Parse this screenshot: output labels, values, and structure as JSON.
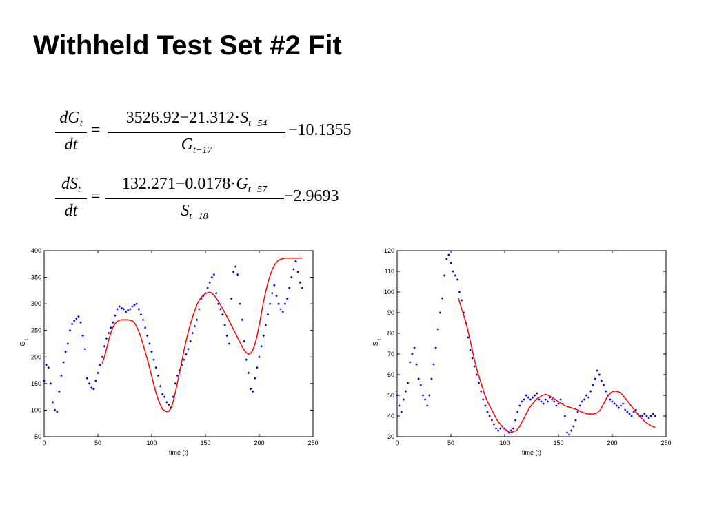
{
  "title": "Withheld Test Set #2 Fit",
  "equations": [
    {
      "lhs_num_base": "dG",
      "lhs_num_sub": "t",
      "lhs_den": "dt",
      "equals": "=",
      "rhs_num_text": "3526.92−21.312·",
      "rhs_num_var": "S",
      "rhs_num_sub": "t−54",
      "rhs_den_var": "G",
      "rhs_den_sub": "t−17",
      "tail": "−10.1355"
    },
    {
      "lhs_num_base": "dS",
      "lhs_num_sub": "t",
      "lhs_den": "dt",
      "equals": "=",
      "rhs_num_text": "132.271−0.0178·",
      "rhs_num_var": "G",
      "rhs_num_sub": "t−57",
      "rhs_den_var": "S",
      "rhs_den_sub": "t−18",
      "tail": "−2.9693"
    }
  ],
  "chart_data": [
    {
      "type": "scatter",
      "title": "",
      "xlabel": "time (t)",
      "ylabel": "G",
      "ylabel_sub": "t",
      "xlim": [
        0,
        250
      ],
      "ylim": [
        50,
        400
      ],
      "xticks": [
        0,
        50,
        100,
        150,
        200,
        250
      ],
      "yticks": [
        50,
        100,
        150,
        200,
        250,
        300,
        350,
        400
      ],
      "grid": false,
      "points_color": "#0000ff",
      "fit_color": "#ff0000",
      "observed_x": [
        0,
        2,
        4,
        6,
        8,
        10,
        12,
        14,
        16,
        18,
        20,
        22,
        24,
        26,
        28,
        30,
        32,
        34,
        36,
        38,
        40,
        42,
        44,
        46,
        48,
        50,
        52,
        54,
        56,
        58,
        60,
        62,
        64,
        66,
        68,
        70,
        72,
        74,
        76,
        78,
        80,
        82,
        84,
        86,
        88,
        90,
        92,
        94,
        96,
        98,
        100,
        102,
        104,
        106,
        108,
        110,
        112,
        114,
        116,
        118,
        120,
        122,
        124,
        126,
        128,
        130,
        132,
        134,
        136,
        138,
        140,
        142,
        144,
        146,
        148,
        150,
        152,
        154,
        156,
        158,
        160,
        162,
        164,
        166,
        168,
        170,
        172,
        174,
        176,
        178,
        180,
        182,
        184,
        186,
        188,
        190,
        192,
        194,
        196,
        198,
        200,
        202,
        204,
        206,
        208,
        210,
        212,
        214,
        216,
        218,
        220,
        222,
        224,
        226,
        228,
        230,
        232,
        234,
        236,
        238,
        240
      ],
      "observed_y": [
        155,
        185,
        180,
        150,
        115,
        100,
        97,
        135,
        165,
        190,
        210,
        225,
        250,
        262,
        268,
        272,
        276,
        265,
        240,
        215,
        160,
        150,
        142,
        140,
        155,
        170,
        185,
        200,
        220,
        235,
        245,
        255,
        265,
        278,
        290,
        295,
        292,
        290,
        285,
        288,
        290,
        295,
        298,
        300,
        290,
        280,
        270,
        255,
        240,
        225,
        210,
        195,
        180,
        165,
        145,
        130,
        125,
        115,
        110,
        105,
        125,
        150,
        165,
        175,
        185,
        195,
        205,
        215,
        230,
        245,
        258,
        270,
        290,
        310,
        315,
        320,
        330,
        340,
        350,
        355,
        320,
        300,
        290,
        280,
        260,
        240,
        225,
        310,
        360,
        370,
        355,
        300,
        270,
        230,
        195,
        170,
        140,
        135,
        160,
        180,
        200,
        220,
        240,
        260,
        280,
        300,
        320,
        335,
        315,
        300,
        290,
        285,
        300,
        310,
        330,
        350,
        365,
        380,
        360,
        340,
        330
      ],
      "fit_x": [
        54,
        56,
        58,
        60,
        62,
        64,
        66,
        68,
        70,
        72,
        74,
        76,
        78,
        80,
        82,
        84,
        86,
        88,
        90,
        92,
        94,
        96,
        98,
        100,
        102,
        104,
        106,
        108,
        110,
        112,
        114,
        116,
        118,
        120,
        122,
        124,
        126,
        128,
        130,
        132,
        134,
        136,
        138,
        140,
        142,
        144,
        146,
        148,
        150,
        152,
        154,
        156,
        158,
        160,
        162,
        164,
        166,
        168,
        170,
        172,
        174,
        176,
        178,
        180,
        182,
        184,
        186,
        188,
        190,
        192,
        194,
        196,
        198,
        200,
        202,
        204,
        206,
        208,
        210,
        212,
        214,
        216,
        218,
        220,
        222,
        224,
        226,
        228,
        230,
        232,
        234,
        236,
        238,
        240
      ],
      "fit_y": [
        188,
        200,
        215,
        232,
        245,
        256,
        263,
        267,
        269,
        270,
        270,
        270,
        270,
        269,
        268,
        264,
        257,
        248,
        237,
        224,
        210,
        195,
        180,
        164,
        148,
        133,
        120,
        110,
        102,
        99,
        97,
        98,
        104,
        116,
        133,
        152,
        172,
        192,
        212,
        230,
        247,
        262,
        275,
        287,
        298,
        306,
        312,
        316,
        319,
        321,
        322,
        320,
        316,
        311,
        305,
        298,
        291,
        283,
        276,
        268,
        260,
        252,
        244,
        236,
        228,
        220,
        213,
        208,
        205,
        207,
        213,
        224,
        240,
        260,
        282,
        304,
        323,
        339,
        353,
        364,
        372,
        378,
        382,
        384,
        385,
        386,
        386,
        386,
        386,
        386,
        386,
        386,
        386,
        386
      ]
    },
    {
      "type": "scatter",
      "title": "",
      "xlabel": "time (t)",
      "ylabel": "S",
      "ylabel_sub": "t",
      "xlim": [
        0,
        250
      ],
      "ylim": [
        30,
        120
      ],
      "xticks": [
        0,
        50,
        100,
        150,
        200,
        250
      ],
      "yticks": [
        30,
        40,
        50,
        60,
        70,
        80,
        90,
        100,
        110,
        120
      ],
      "grid": false,
      "points_color": "#0000ff",
      "fit_color": "#ff0000",
      "observed_x": [
        0,
        2,
        4,
        6,
        8,
        10,
        12,
        14,
        16,
        18,
        20,
        22,
        24,
        26,
        28,
        30,
        32,
        34,
        36,
        38,
        40,
        42,
        44,
        46,
        48,
        50,
        52,
        54,
        56,
        58,
        60,
        62,
        64,
        66,
        68,
        70,
        72,
        74,
        76,
        78,
        80,
        82,
        84,
        86,
        88,
        90,
        92,
        94,
        96,
        98,
        100,
        102,
        104,
        106,
        108,
        110,
        112,
        114,
        116,
        118,
        120,
        122,
        124,
        126,
        128,
        130,
        132,
        134,
        136,
        138,
        140,
        142,
        144,
        146,
        148,
        150,
        152,
        154,
        156,
        158,
        160,
        162,
        164,
        166,
        168,
        170,
        172,
        174,
        176,
        178,
        180,
        182,
        184,
        186,
        188,
        190,
        192,
        194,
        196,
        198,
        200,
        202,
        204,
        206,
        208,
        210,
        212,
        214,
        216,
        218,
        220,
        222,
        224,
        226,
        228,
        230,
        232,
        234,
        236,
        238,
        240
      ],
      "observed_y": [
        50,
        45,
        42,
        48,
        52,
        56,
        66,
        70,
        73,
        65,
        58,
        55,
        50,
        48,
        45,
        50,
        58,
        65,
        73,
        82,
        90,
        97,
        108,
        116,
        118,
        114,
        110,
        108,
        106,
        100,
        96,
        90,
        85,
        78,
        72,
        68,
        64,
        60,
        56,
        52,
        48,
        45,
        42,
        40,
        38,
        36,
        34,
        33,
        34,
        35,
        34,
        33,
        32,
        33,
        34,
        38,
        42,
        45,
        47,
        48,
        50,
        49,
        48,
        49,
        50,
        51,
        48,
        47,
        46,
        48,
        47,
        49,
        48,
        47,
        45,
        46,
        48,
        46,
        40,
        32,
        31,
        33,
        35,
        38,
        42,
        45,
        47,
        48,
        50,
        49,
        52,
        55,
        58,
        62,
        60,
        57,
        55,
        52,
        50,
        48,
        47,
        46,
        45,
        44,
        45,
        46,
        43,
        42,
        41,
        40,
        42,
        43,
        41,
        40,
        40,
        41,
        40,
        39,
        40,
        41,
        40
      ],
      "fit_x": [
        57,
        60,
        63,
        66,
        69,
        72,
        75,
        78,
        81,
        84,
        87,
        90,
        93,
        96,
        99,
        102,
        105,
        108,
        111,
        114,
        117,
        120,
        123,
        126,
        129,
        132,
        135,
        138,
        141,
        144,
        147,
        150,
        153,
        156,
        159,
        162,
        165,
        168,
        171,
        174,
        177,
        180,
        183,
        186,
        189,
        192,
        195,
        198,
        201,
        204,
        207,
        210,
        213,
        216,
        219,
        222,
        225,
        228,
        231,
        234,
        237,
        240
      ],
      "fit_y": [
        97,
        92,
        87,
        81,
        74,
        67,
        61,
        56,
        51,
        47,
        44,
        41,
        38,
        36,
        34,
        33,
        32,
        32.5,
        33,
        35,
        38,
        41,
        44,
        46,
        48,
        49,
        50,
        50.5,
        50,
        49,
        48,
        47,
        46,
        45,
        44.5,
        44,
        43.5,
        43,
        42,
        41.5,
        41,
        41,
        41,
        41.5,
        43,
        46,
        49,
        51,
        52,
        52,
        51.5,
        50,
        48,
        46,
        44,
        42,
        40,
        38.5,
        37,
        36,
        35,
        34.5
      ]
    }
  ]
}
